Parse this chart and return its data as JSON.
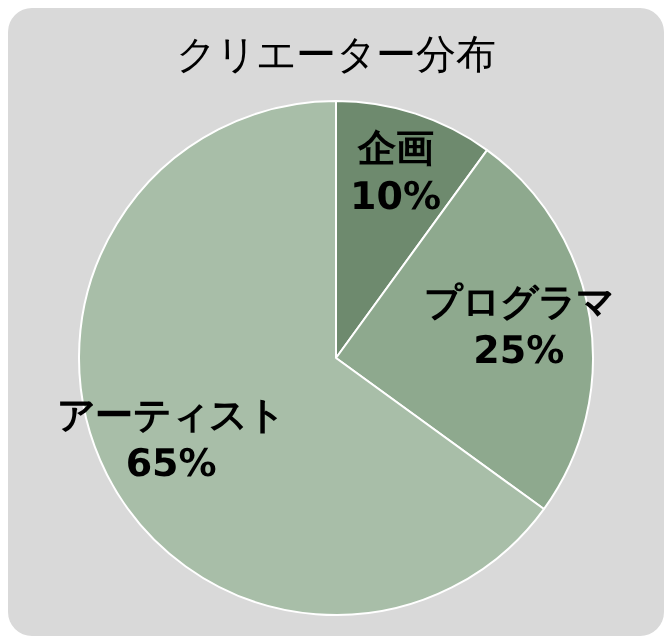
{
  "chart_data": {
    "type": "pie",
    "title": "クリエーター分布",
    "categories": [
      "企画",
      "プログラマ",
      "アーティスト"
    ],
    "values": [
      10,
      25,
      65
    ],
    "colors": [
      "#6e8a6e",
      "#8ea98e",
      "#a8bea8"
    ],
    "value_labels": [
      "10%",
      "25%",
      "65%"
    ],
    "legend": false
  }
}
